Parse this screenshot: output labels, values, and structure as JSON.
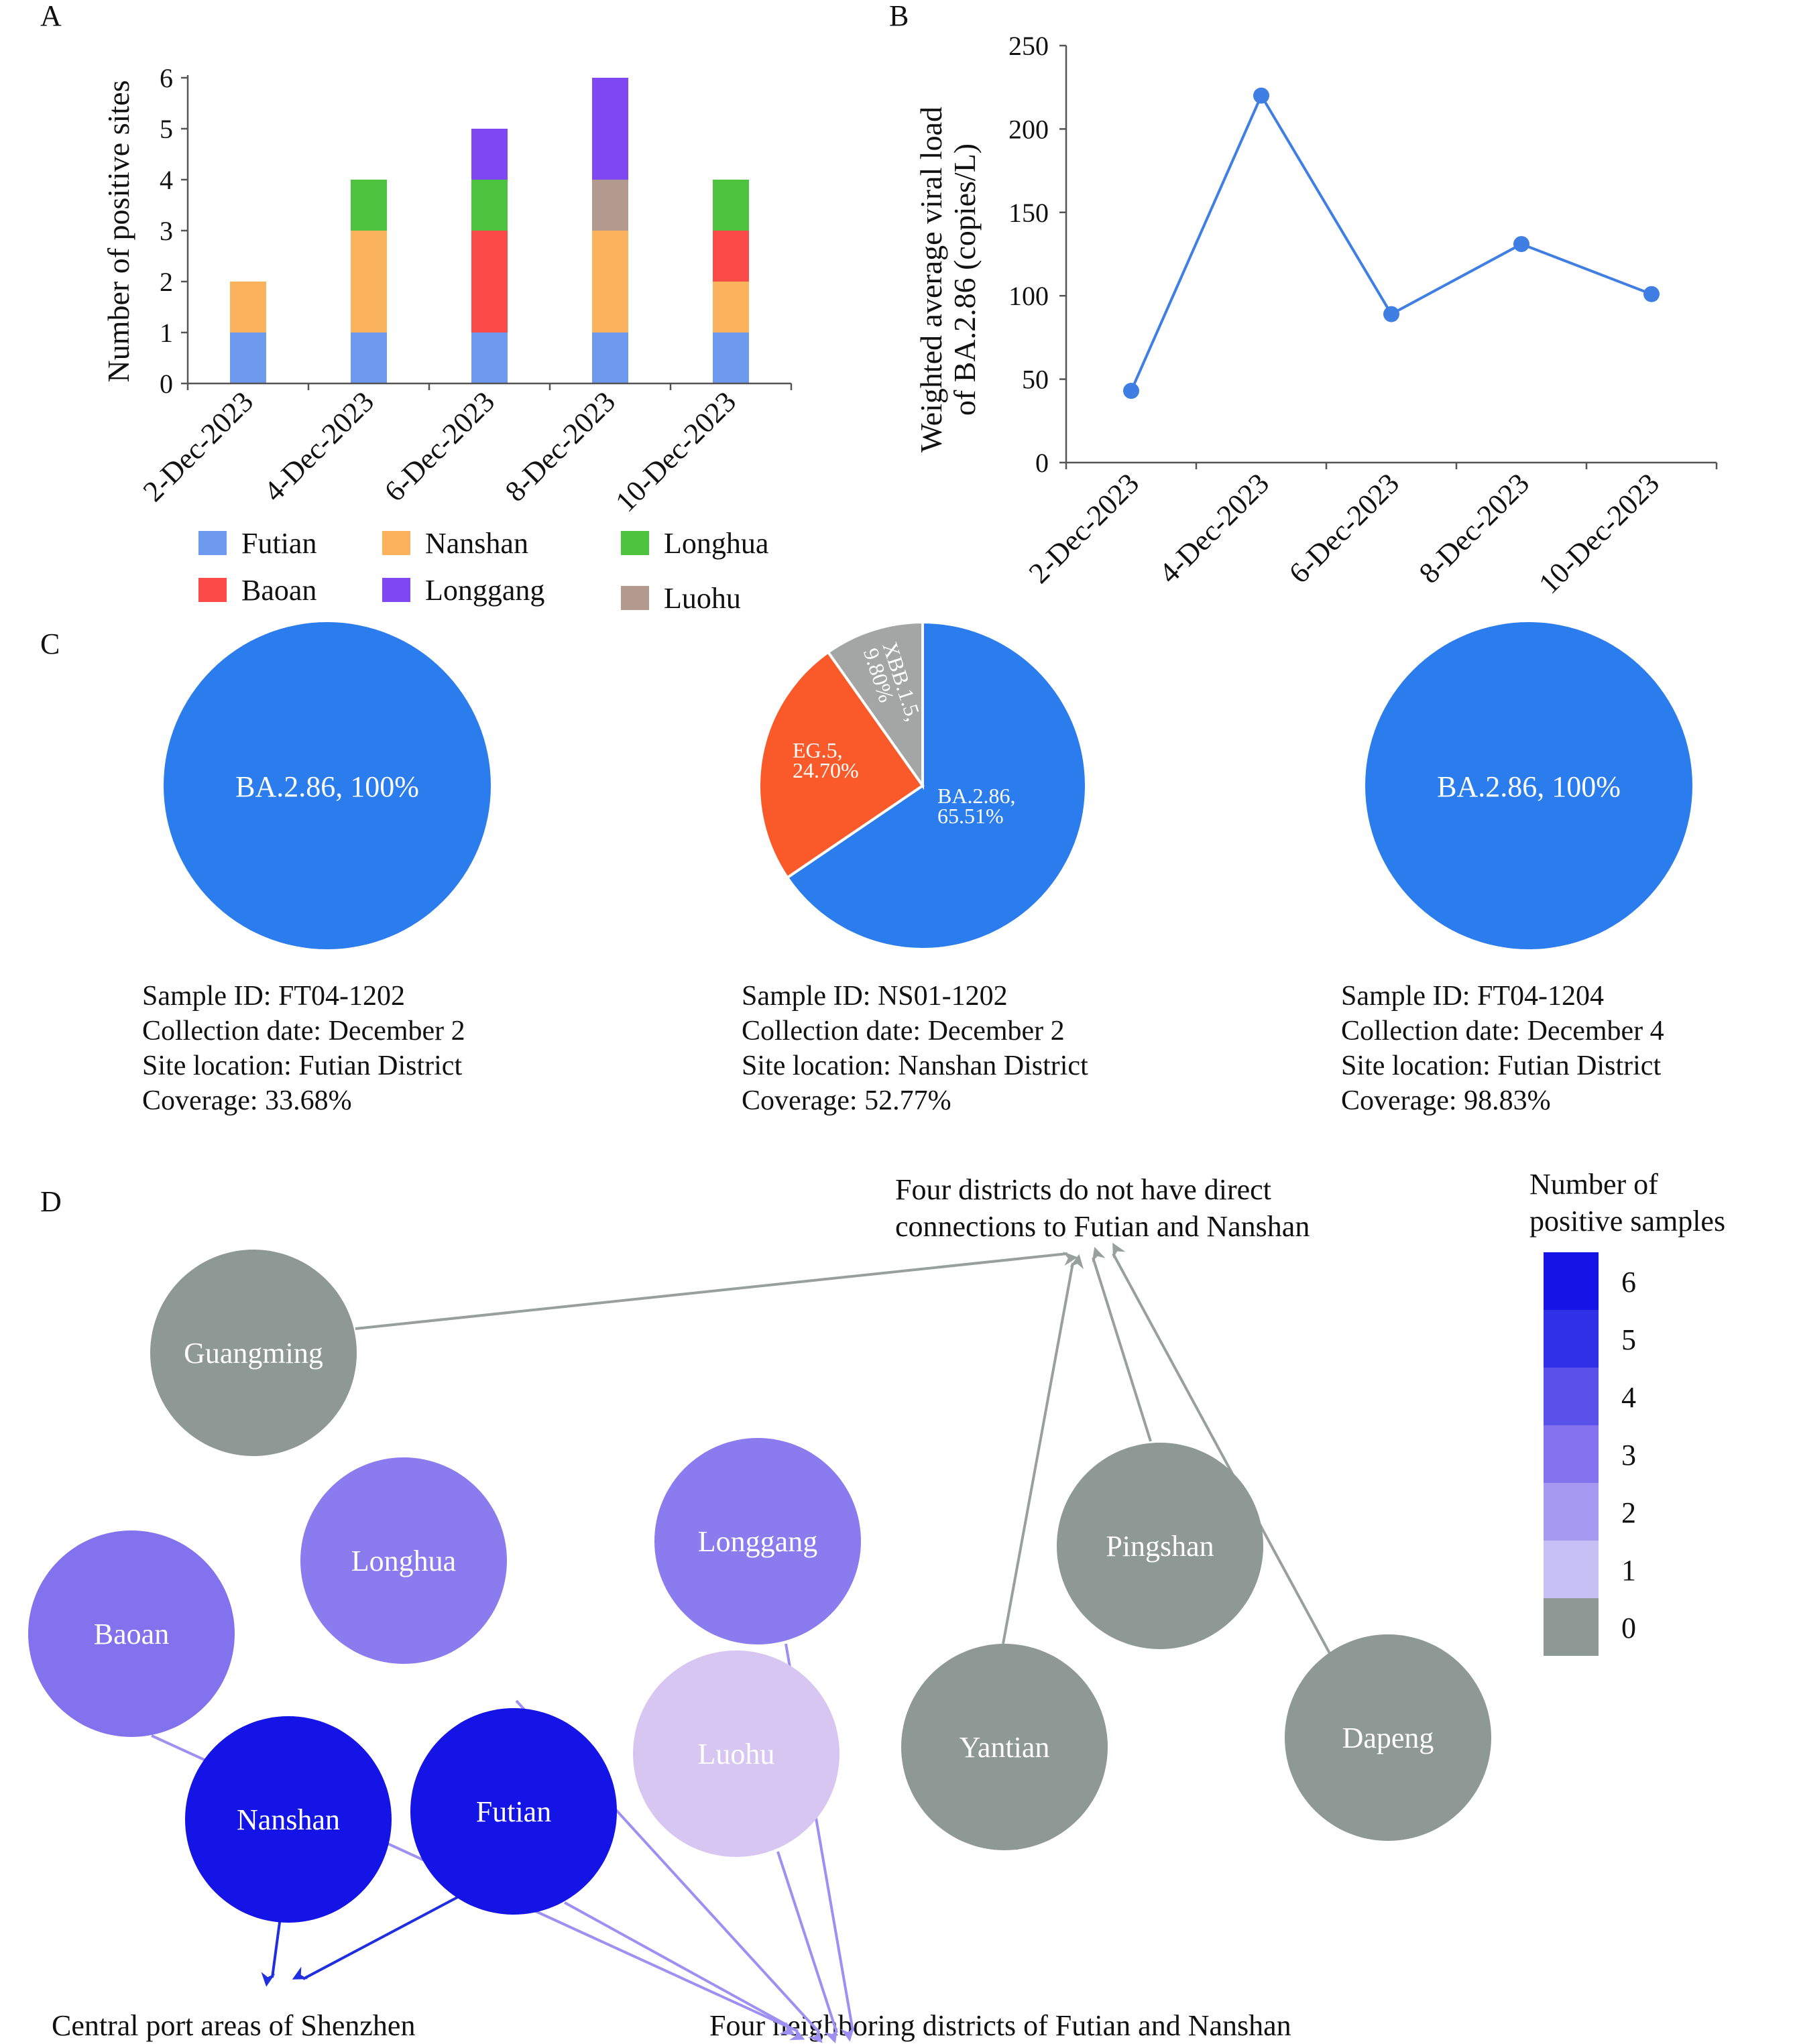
{
  "panel_labels": {
    "a": "A",
    "b": "B",
    "c": "C",
    "d": "D"
  },
  "chart_data": [
    {
      "type": "bar",
      "stacked": true,
      "panel": "A",
      "categories": [
        "2-Dec-2023",
        "4-Dec-2023",
        "6-Dec-2023",
        "8-Dec-2023",
        "10-Dec-2023"
      ],
      "series": [
        {
          "name": "Futian",
          "color": "#6d9aee",
          "values": [
            1,
            1,
            1,
            1,
            1
          ]
        },
        {
          "name": "Nanshan",
          "color": "#fbb25c",
          "values": [
            1,
            2,
            0,
            2,
            1
          ]
        },
        {
          "name": "Baoan",
          "color": "#fa4b48",
          "values": [
            0,
            0,
            2,
            0,
            1
          ]
        },
        {
          "name": "Luohu",
          "color": "#b29b8e",
          "values": [
            0,
            0,
            0,
            1,
            0
          ]
        },
        {
          "name": "Longhua",
          "color": "#4cc23f",
          "values": [
            0,
            1,
            1,
            0,
            1
          ]
        },
        {
          "name": "Longgang",
          "color": "#8048f2",
          "values": [
            0,
            0,
            1,
            2,
            0
          ]
        }
      ],
      "ylabel": "Number of positive sites",
      "ylim": [
        0,
        6
      ],
      "yticks": [
        "0",
        "1",
        "2",
        "3",
        "4",
        "5",
        "6"
      ],
      "legend_order": [
        "Futian",
        "Nanshan",
        "Longhua",
        "Baoan",
        "Longgang",
        "Luohu"
      ]
    },
    {
      "type": "line",
      "panel": "B",
      "categories": [
        "2-Dec-2023",
        "4-Dec-2023",
        "6-Dec-2023",
        "8-Dec-2023",
        "10-Dec-2023"
      ],
      "series": [
        {
          "color": "#3f7ee3",
          "values": [
            43,
            220,
            89,
            131,
            101
          ]
        }
      ],
      "ylabel_lines": [
        "Weighted average viral load",
        "of BA.2.86 (copies/L)"
      ],
      "ylim": [
        0,
        250
      ],
      "yticks": [
        "0",
        "50",
        "100",
        "150",
        "200",
        "250"
      ]
    },
    {
      "type": "pie",
      "panel": "C",
      "pies": [
        {
          "slices": [
            {
              "label": "BA.2.86, 100%",
              "value": 100,
              "color": "#2b7ded"
            }
          ],
          "info": [
            "Sample ID: FT04-1202",
            "Collection date: December 2",
            "Site location: Futian District",
            "Coverage: 33.68%"
          ]
        },
        {
          "slices": [
            {
              "label_lines": [
                "BA.2.86,",
                "65.51%"
              ],
              "value": 65.51,
              "color": "#2b7ded"
            },
            {
              "label_lines": [
                "EG.5,",
                "24.70%"
              ],
              "value": 24.7,
              "color": "#fa5a2a"
            },
            {
              "label_lines": [
                "XBB.1.5,",
                "9.80%"
              ],
              "value": 9.8,
              "color": "#a3a6a4"
            }
          ],
          "info": [
            "Sample ID: NS01-1202",
            "Collection date: December 2",
            "Site location: Nanshan District",
            "Coverage: 52.77%"
          ]
        },
        {
          "slices": [
            {
              "label": "BA.2.86, 100%",
              "value": 100,
              "color": "#2b7ded"
            }
          ],
          "info": [
            "Sample ID: FT04-1204",
            "Collection date: December 4",
            "Site location: Futian District",
            "Coverage: 98.83%"
          ]
        }
      ]
    }
  ],
  "network": {
    "top_caption": [
      "Four  districts do not have direct",
      "connections to Futian and Nanshan"
    ],
    "bottom_left_caption": "Central  port  areas  of Shenzhen",
    "bottom_right_caption": "Four  neighboring  districts of Futian and Nanshan",
    "legend_title": [
      "Number of",
      "positive samples"
    ],
    "legend_levels": [
      {
        "label": "6",
        "color": "#1414e6"
      },
      {
        "label": "5",
        "color": "#3030e9"
      },
      {
        "label": "4",
        "color": "#5a50ea"
      },
      {
        "label": "3",
        "color": "#8272ee"
      },
      {
        "label": "2",
        "color": "#a699f1"
      },
      {
        "label": "1",
        "color": "#c5bff4"
      },
      {
        "label": "0",
        "color": "#8e9895"
      }
    ],
    "nodes": [
      {
        "name": "Guangming",
        "color": "#8e9895"
      },
      {
        "name": "Longhua",
        "color": "#8a7cef"
      },
      {
        "name": "Longgang",
        "color": "#8a7cef"
      },
      {
        "name": "Baoan",
        "color": "#8272ee"
      },
      {
        "name": "Pingshan",
        "color": "#8e9895"
      },
      {
        "name": "Luohu",
        "color": "#d8c6f2"
      },
      {
        "name": "Yantian",
        "color": "#8e9895"
      },
      {
        "name": "Dapeng",
        "color": "#8e9895"
      },
      {
        "name": "Nanshan",
        "color": "#1414e6"
      },
      {
        "name": "Futian",
        "color": "#1414e6"
      }
    ]
  }
}
